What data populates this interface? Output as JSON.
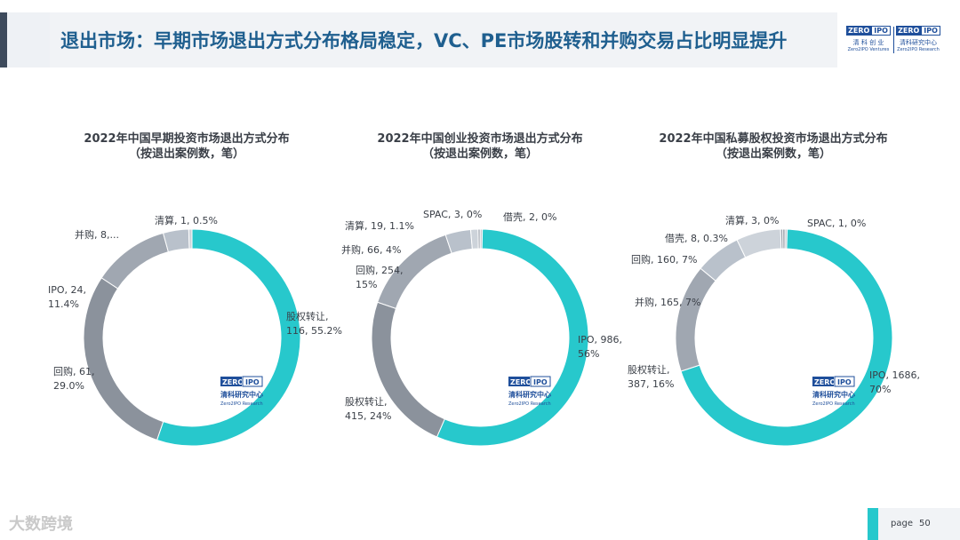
{
  "header": {
    "title": "退出市场：早期市场退出方式分布格局稳定，VC、PE市场股转和并购交易占比明显提升",
    "logo_left": {
      "zero": "ZERO",
      "ipo": "IPO",
      "cn": "清 科 创 业",
      "en": "Zero2IPO Ventures"
    },
    "logo_right": {
      "zero": "ZERO",
      "ipo": "IPO",
      "cn": "清科研究中心",
      "en": "Zero2IPO Research"
    }
  },
  "watermark": {
    "zero": "ZERO",
    "ipo": "IPO",
    "cn": "清科研究中心",
    "en": "Zero2IPO Research"
  },
  "footer": {
    "brand": "大数跨境",
    "page_label": "page",
    "page_number": "50"
  },
  "colors": {
    "teal": "#27c8cc",
    "dark_gray": "#8b929c",
    "mid_gray": "#a0a7b1",
    "light_gray": "#b9c1cb",
    "pale_gray": "#cdd3da",
    "title_blue": "#1f5f8f"
  },
  "chart_data": [
    {
      "type": "pie",
      "title": "2022年中国早期投资市场退出方式分布",
      "subtitle": "（按退出案例数，笔）",
      "slices": [
        {
          "name": "股权转让",
          "value": 116,
          "percent": 55.2,
          "label_line1": "股权转让,",
          "label_line2": "116, 55.2%",
          "color": "#27c8cc"
        },
        {
          "name": "回购",
          "value": 61,
          "percent": 29.0,
          "label_line1": "回购, 61,",
          "label_line2": "29.0%",
          "color": "#8b929c"
        },
        {
          "name": "IPO",
          "value": 24,
          "percent": 11.4,
          "label_line1": "IPO, 24,",
          "label_line2": "11.4%",
          "color": "#a0a7b1"
        },
        {
          "name": "并购",
          "value": 8,
          "percent": 3.8,
          "label_line1": "并购, 8,...",
          "label_line2": "",
          "color": "#b9c1cb"
        },
        {
          "name": "清算",
          "value": 1,
          "percent": 0.5,
          "label_line1": "清算, 1, 0.5%",
          "label_line2": "",
          "color": "#cdd3da"
        }
      ]
    },
    {
      "type": "pie",
      "title": "2022年中国创业投资市场退出方式分布",
      "subtitle": "（按退出案例数，笔）",
      "slices": [
        {
          "name": "IPO",
          "value": 986,
          "percent": 56,
          "label_line1": "IPO, 986,",
          "label_line2": "56%",
          "color": "#27c8cc"
        },
        {
          "name": "股权转让",
          "value": 415,
          "percent": 24,
          "label_line1": "股权转让,",
          "label_line2": "415, 24%",
          "color": "#8b929c"
        },
        {
          "name": "回购",
          "value": 254,
          "percent": 15,
          "label_line1": "回购, 254,",
          "label_line2": "15%",
          "color": "#a0a7b1"
        },
        {
          "name": "并购",
          "value": 66,
          "percent": 4,
          "label_line1": "并购, 66, 4%",
          "label_line2": "",
          "color": "#b9c1cb"
        },
        {
          "name": "清算",
          "value": 19,
          "percent": 1.1,
          "label_line1": "清算, 19, 1.1%",
          "label_line2": "",
          "color": "#cdd3da"
        },
        {
          "name": "SPAC",
          "value": 3,
          "percent": 0,
          "label_line1": "SPAC, 3, 0%",
          "label_line2": "",
          "color": "#9aa1ab"
        },
        {
          "name": "借壳",
          "value": 2,
          "percent": 0,
          "label_line1": "借壳, 2, 0%",
          "label_line2": "",
          "color": "#c4cad2"
        }
      ]
    },
    {
      "type": "pie",
      "title": "2022年中国私募股权投资市场退出方式分布",
      "subtitle": "（按退出案例数，笔）",
      "slices": [
        {
          "name": "IPO",
          "value": 1686,
          "percent": 70,
          "label_line1": "IPO, 1686,",
          "label_line2": "70%",
          "color": "#27c8cc"
        },
        {
          "name": "股权转让",
          "value": 387,
          "percent": 16,
          "label_line1": "股权转让,",
          "label_line2": "387, 16%",
          "color": "#a0a7b1"
        },
        {
          "name": "并购",
          "value": 165,
          "percent": 7,
          "label_line1": "并购, 165, 7%",
          "label_line2": "",
          "color": "#b9c1cb"
        },
        {
          "name": "回购",
          "value": 160,
          "percent": 7,
          "label_line1": "回购, 160, 7%",
          "label_line2": "",
          "color": "#cdd3da"
        },
        {
          "name": "借壳",
          "value": 8,
          "percent": 0.3,
          "label_line1": "借壳, 8, 0.3%",
          "label_line2": "",
          "color": "#9aa1ab"
        },
        {
          "name": "清算",
          "value": 3,
          "percent": 0,
          "label_line1": "清算, 3, 0%",
          "label_line2": "",
          "color": "#8b929c"
        },
        {
          "name": "SPAC",
          "value": 1,
          "percent": 0,
          "label_line1": "SPAC, 1, 0%",
          "label_line2": "",
          "color": "#c4cad2"
        }
      ]
    }
  ]
}
